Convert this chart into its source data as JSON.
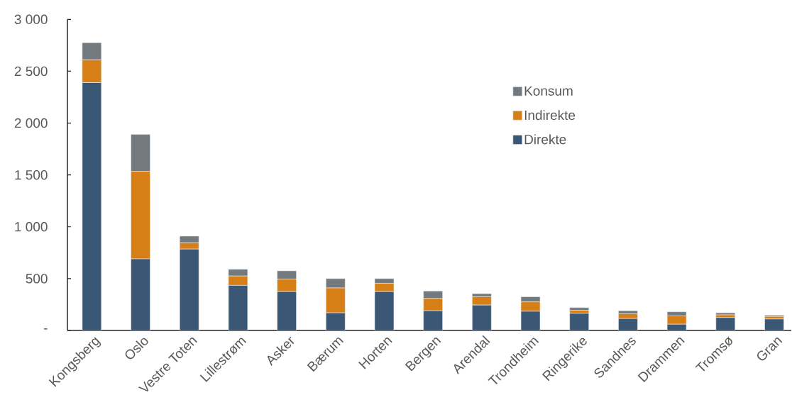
{
  "chart_data": {
    "type": "bar",
    "stacked": true,
    "categories": [
      "Kongsberg",
      "Oslo",
      "Vestre Toten",
      "Lillestrøm",
      "Asker",
      "Bærum",
      "Horten",
      "Bergen",
      "Arendal",
      "Trondheim",
      "Ringerike",
      "Sandnes",
      "Drammen",
      "Tromsø",
      "Gran"
    ],
    "series": [
      {
        "name": "Direkte",
        "color": "#3a5875",
        "values": [
          2390,
          690,
          785,
          435,
          375,
          170,
          375,
          190,
          245,
          185,
          165,
          115,
          60,
          125,
          110
        ]
      },
      {
        "name": "Indirekte",
        "color": "#d77f17",
        "values": [
          220,
          845,
          60,
          90,
          120,
          240,
          80,
          120,
          80,
          90,
          30,
          45,
          80,
          25,
          25
        ]
      },
      {
        "name": "Konsum",
        "color": "#727a80",
        "values": [
          165,
          355,
          65,
          65,
          80,
          90,
          45,
          70,
          30,
          50,
          25,
          30,
          40,
          20,
          12
        ]
      }
    ],
    "ylim": [
      0,
      3000
    ],
    "yticks": [
      {
        "value": 0,
        "label": "-"
      },
      500,
      {
        "value": 1000,
        "label": "1 000"
      },
      {
        "value": 1500,
        "label": "1 500"
      },
      {
        "value": 2000,
        "label": "2 000"
      },
      {
        "value": 2500,
        "label": "2 500"
      },
      {
        "value": 3000,
        "label": "3 000"
      }
    ],
    "legend": "top right"
  }
}
